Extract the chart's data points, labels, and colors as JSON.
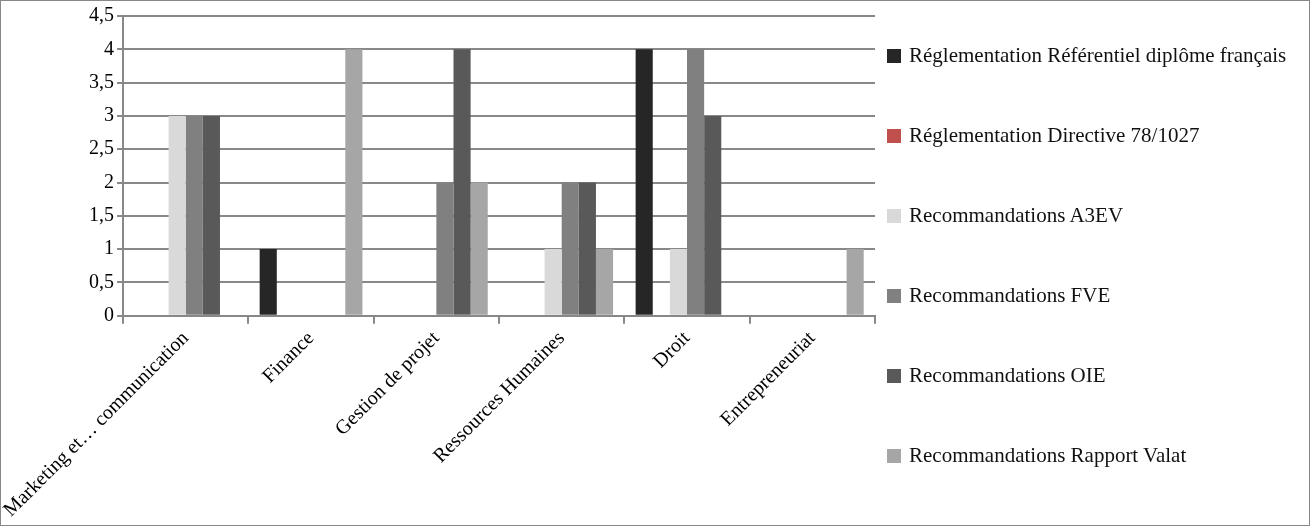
{
  "chart_data": {
    "type": "bar",
    "categories": [
      "Marketing et… communication",
      "Finance",
      "Gestion de projet",
      "Ressources Humaines",
      "Droit",
      "Entrepreneuriat"
    ],
    "series": [
      {
        "name": "Réglementation Référentiel diplôme français",
        "color": "#262626",
        "values": [
          0,
          1,
          0,
          0,
          4,
          0
        ]
      },
      {
        "name": "Réglementation Directive 78/1027",
        "color": "#c0504d",
        "values": [
          0,
          0,
          0,
          0,
          0,
          0
        ]
      },
      {
        "name": "Recommandations A3EV",
        "color": "#d9d9d9",
        "values": [
          3,
          0,
          0,
          1,
          1,
          0
        ]
      },
      {
        "name": "Recommandations FVE",
        "color": "#808080",
        "values": [
          3,
          0,
          2,
          2,
          4,
          0
        ]
      },
      {
        "name": "Recommandations OIE",
        "color": "#595959",
        "values": [
          3,
          0,
          4,
          2,
          3,
          0
        ]
      },
      {
        "name": "Recommandations Rapport Valat",
        "color": "#a6a6a6",
        "values": [
          0,
          4,
          2,
          1,
          0,
          1
        ]
      }
    ],
    "ylim": [
      0,
      4.5
    ],
    "yticks": [
      {
        "value": 0,
        "label": "0"
      },
      {
        "value": 0.5,
        "label": "0,5"
      },
      {
        "value": 1,
        "label": "1"
      },
      {
        "value": 1.5,
        "label": "1,5"
      },
      {
        "value": 2,
        "label": "2"
      },
      {
        "value": 2.5,
        "label": "2,5"
      },
      {
        "value": 3,
        "label": "3"
      },
      {
        "value": 3.5,
        "label": "3,5"
      },
      {
        "value": 4,
        "label": "4"
      },
      {
        "value": 4.5,
        "label": "4,5"
      }
    ],
    "grid": "y",
    "legend": "right"
  }
}
